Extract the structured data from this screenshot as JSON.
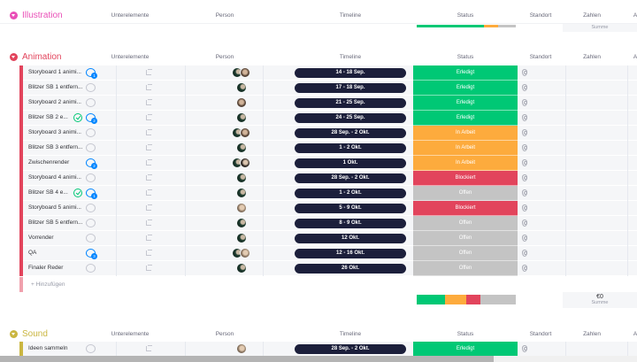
{
  "columns": {
    "subitems": "Unterelemente",
    "person": "Person",
    "timeline": "Timeline",
    "status": "Status",
    "location": "Standort",
    "numbers": "Zahlen",
    "next": "A"
  },
  "colors": {
    "done": "#00c875",
    "working": "#fdab3d",
    "stuck": "#e2445c",
    "open": "#c4c4c4",
    "timeline": "#1c1f3b",
    "illustration": "#e94fb7",
    "animation": "#e2445c",
    "sound": "#cab641"
  },
  "groups": {
    "illustration": {
      "title": "Illustration",
      "summary": {
        "done_pct": 68,
        "working_pct": 14,
        "stuck_pct": 0,
        "open_pct": 18
      },
      "sum_label": "Summe"
    },
    "animation": {
      "title": "Animation",
      "add_label": "+ Hinzufügen",
      "sum_value": "€0",
      "sum_label": "Summe",
      "rows": [
        {
          "name": "Storyboard 1 animi...",
          "comment": "active",
          "badge": "1",
          "check": false,
          "avatars": [
            "a",
            "b"
          ],
          "timeline": "14 - 18 Sep.",
          "status": "Erledigt",
          "status_key": "done"
        },
        {
          "name": "Blitzer SB 1 entfern...",
          "comment": "empty",
          "check": false,
          "avatars": [
            "a"
          ],
          "timeline": "17 - 18 Sep.",
          "status": "Erledigt",
          "status_key": "done"
        },
        {
          "name": "Storyboard 2 animi...",
          "comment": "empty",
          "check": false,
          "avatars": [
            "b"
          ],
          "timeline": "21 - 25 Sep.",
          "status": "Erledigt",
          "status_key": "done"
        },
        {
          "name": "Blitzer SB 2 e...",
          "comment": "active",
          "badge": "2",
          "check": true,
          "avatars": [
            "a"
          ],
          "timeline": "24 - 25 Sep.",
          "status": "Erledigt",
          "status_key": "done"
        },
        {
          "name": "Storyboard 3 animi...",
          "comment": "empty",
          "check": false,
          "avatars": [
            "a",
            "b"
          ],
          "timeline": "28 Sep. - 2 Okt.",
          "status": "In Arbeit",
          "status_key": "working"
        },
        {
          "name": "Blitzer SB 3 entfern...",
          "comment": "empty",
          "check": false,
          "avatars": [
            "a"
          ],
          "timeline": "1 - 2 Okt.",
          "status": "In Arbeit",
          "status_key": "working"
        },
        {
          "name": "Zwischenrender",
          "comment": "active",
          "badge": "2",
          "check": false,
          "avatars": [
            "a",
            "d"
          ],
          "timeline": "1 Okt.",
          "status": "In Arbeit",
          "status_key": "working"
        },
        {
          "name": "Storyboard 4 animi...",
          "comment": "empty",
          "check": false,
          "avatars": [
            "a"
          ],
          "timeline": "28 Sep. - 2 Okt.",
          "status": "Blockiert",
          "status_key": "stuck"
        },
        {
          "name": "Blitzer SB 4 e...",
          "comment": "active",
          "badge": "1",
          "check": true,
          "avatars": [
            "a"
          ],
          "timeline": "1 - 2 Okt.",
          "status": "Offen",
          "status_key": "open"
        },
        {
          "name": "Storyboard 5 animi...",
          "comment": "empty",
          "check": false,
          "avatars": [
            "c"
          ],
          "timeline": "5 - 9 Okt.",
          "status": "Blockiert",
          "status_key": "stuck"
        },
        {
          "name": "Blitzer SB 5 entfern...",
          "comment": "empty",
          "check": false,
          "avatars": [
            "a"
          ],
          "timeline": "8 - 9 Okt.",
          "status": "Offen",
          "status_key": "open"
        },
        {
          "name": "Vorrender",
          "comment": "empty",
          "check": false,
          "avatars": [
            "a"
          ],
          "timeline": "12 Okt.",
          "status": "Offen",
          "status_key": "open"
        },
        {
          "name": "QA",
          "comment": "active",
          "badge": "3",
          "check": false,
          "avatars": [
            "a",
            "c"
          ],
          "timeline": "12 - 16 Okt.",
          "status": "Offen",
          "status_key": "open"
        },
        {
          "name": "Finaler Reder",
          "comment": "empty",
          "check": false,
          "avatars": [
            "a"
          ],
          "timeline": "26 Okt.",
          "status": "Offen",
          "status_key": "open"
        }
      ],
      "summary": {
        "done_pct": 29,
        "working_pct": 21,
        "stuck_pct": 14,
        "open_pct": 36
      }
    },
    "sound": {
      "title": "Sound",
      "rows": [
        {
          "name": "Ideen sammeln",
          "comment": "empty",
          "check": false,
          "avatars": [
            "c"
          ],
          "timeline": "28 Sep. - 2 Okt.",
          "status": "Erledigt",
          "status_key": "done"
        }
      ]
    }
  }
}
